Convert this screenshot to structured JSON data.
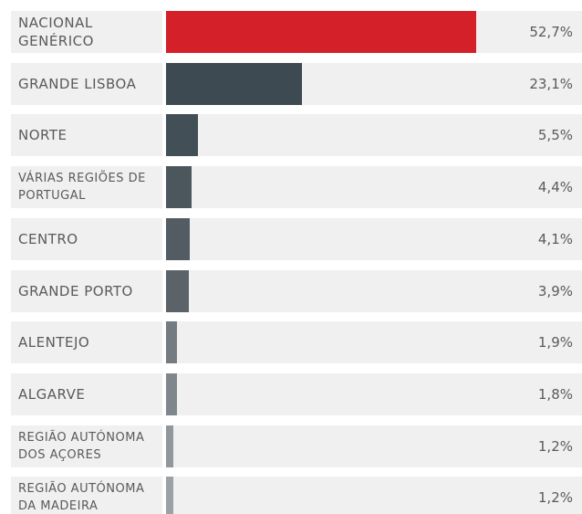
{
  "chart_data": {
    "type": "bar",
    "orientation": "horizontal",
    "categories": [
      "NACIONAL GENÉRICO",
      "GRANDE LISBOA",
      "NORTE",
      "VÁRIAS REGIÕES DE PORTUGAL",
      "CENTRO",
      "GRANDE PORTO",
      "ALENTEJO",
      "ALGARVE",
      "REGIÃO AUTÓNOMA DOS AÇORES",
      "REGIÃO AUTÓNOMA DA MADEIRA"
    ],
    "values": [
      52.7,
      23.1,
      5.5,
      4.4,
      4.1,
      3.9,
      1.9,
      1.8,
      1.2,
      1.2
    ],
    "value_labels": [
      "52,7%",
      "23,1%",
      "5,5%",
      "4,4%",
      "4,1%",
      "3,9%",
      "1,9%",
      "1,8%",
      "1,2%",
      "1,2%"
    ],
    "colors": [
      "#d42029",
      "#3d4a52",
      "#434f57",
      "#4b565d",
      "#535c63",
      "#5b6369",
      "#757c81",
      "#80878c",
      "#92979b",
      "#9ca1a5"
    ]
  }
}
